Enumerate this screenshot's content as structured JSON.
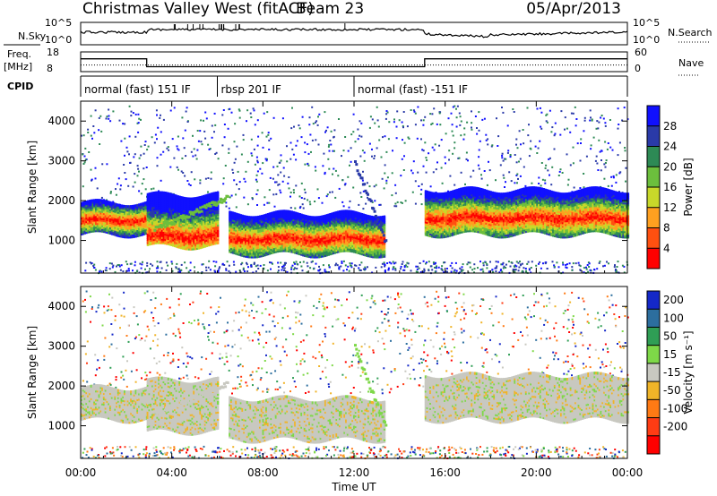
{
  "header": {
    "station": "Christmas Valley West (fitACF)",
    "beam": "Beam 23",
    "date": "05/Apr/2013"
  },
  "chart_data": [
    {
      "panel": "noise",
      "type": "line",
      "left_label": "N.Sky",
      "right_label": "N.Search",
      "left_ticks": [
        "10^5",
        "10^0"
      ],
      "right_ticks": [
        "10^5",
        "10^0"
      ]
    },
    {
      "panel": "frequency",
      "type": "line",
      "left_label": "Freq.",
      "left_unit": "[MHz]",
      "right_label": "Nave",
      "left_ticks": [
        "18",
        "8"
      ],
      "right_ticks": [
        "60",
        "0"
      ],
      "series": [
        {
          "name": "Freq.",
          "x": [
            0,
            2.9,
            2.9,
            15.1,
            15.1,
            24
          ],
          "y": [
            14.5,
            14.5,
            10.5,
            10.5,
            14.5,
            14.5
          ]
        },
        {
          "name": "Nave",
          "x": [
            0,
            24
          ],
          "y": [
            20,
            20
          ]
        }
      ]
    },
    {
      "panel": "cpid",
      "type": "table",
      "label": "CPID",
      "segments": [
        {
          "start": 0,
          "end": 6,
          "text": "normal (fast) 151 IF"
        },
        {
          "start": 6,
          "end": 12,
          "text": "rbsp 201 IF"
        },
        {
          "start": 12,
          "end": 24,
          "text": "normal (fast) -151 IF"
        }
      ]
    },
    {
      "panel": "power",
      "type": "heatmap",
      "ylabel": "Slant Range [km]",
      "ylim": [
        180,
        4500
      ],
      "yticks": [
        1000,
        2000,
        3000,
        4000
      ],
      "colorbar": {
        "label": "Power [dB]",
        "ticks": [
          "4",
          "8",
          "12",
          "16",
          "20",
          "24",
          "28"
        ],
        "colors": [
          "#1010ff",
          "#2a3aa8",
          "#2d8a55",
          "#6cbf3d",
          "#c8d82a",
          "#ffa020",
          "#ff5010",
          "#ff0000"
        ]
      },
      "bands": [
        {
          "x": [
            0,
            2.9
          ],
          "y": [
            1200,
            2000
          ],
          "core": [
            1400,
            1700
          ]
        },
        {
          "x": [
            2.9,
            6
          ],
          "y": [
            900,
            2200
          ],
          "core": [
            1000,
            1300
          ]
        },
        {
          "x": [
            6.5,
            13.3
          ],
          "y": [
            700,
            1700
          ],
          "core": [
            900,
            1250
          ]
        },
        {
          "x": [
            15.1,
            24
          ],
          "y": [
            1200,
            2300
          ],
          "core": [
            1400,
            1800
          ]
        }
      ]
    },
    {
      "panel": "velocity",
      "type": "heatmap",
      "ylabel": "Slant Range [km]",
      "ylim": [
        180,
        4500
      ],
      "yticks": [
        1000,
        2000,
        3000,
        4000
      ],
      "colorbar": {
        "label": "Velocity [m s⁻¹]",
        "ticks": [
          "200",
          "100",
          "50",
          "15",
          "-15",
          "-50",
          "-100",
          "-200"
        ],
        "colors": [
          "#1428c8",
          "#2c6e9e",
          "#2f9e55",
          "#7ed848",
          "#c8c8c0",
          "#f0b428",
          "#ff7a14",
          "#ff3c14",
          "#ff0000"
        ]
      },
      "bands": [
        {
          "x": [
            0,
            2.9
          ],
          "y": [
            1200,
            2000
          ]
        },
        {
          "x": [
            2.9,
            6
          ],
          "y": [
            900,
            2200
          ]
        },
        {
          "x": [
            6.5,
            13.3
          ],
          "y": [
            700,
            1700
          ]
        },
        {
          "x": [
            15.1,
            24
          ],
          "y": [
            1200,
            2300
          ]
        }
      ]
    }
  ],
  "x_axis": {
    "label": "Time UT",
    "xlim": [
      0,
      24
    ],
    "ticks": [
      "00:00",
      "04:00",
      "08:00",
      "12:00",
      "16:00",
      "20:00",
      "00:00"
    ]
  }
}
